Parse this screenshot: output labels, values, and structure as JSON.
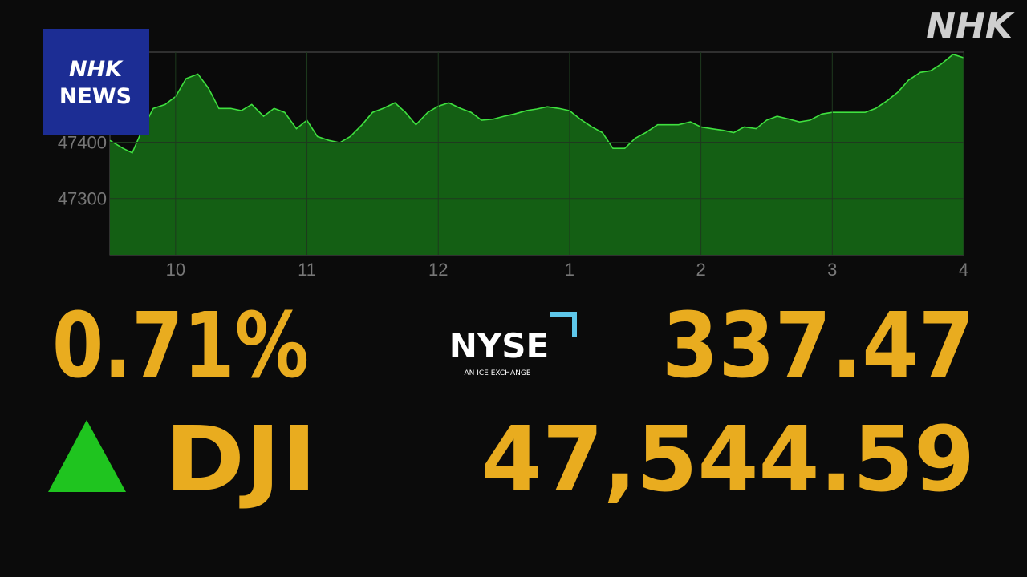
{
  "chart_data": {
    "type": "area",
    "color": "#3fe03f",
    "fill": "#145f14",
    "x": [
      9.5,
      9.6,
      9.67,
      9.75,
      9.83,
      9.92,
      10.0,
      10.08,
      10.17,
      10.25,
      10.33,
      10.42,
      10.5,
      10.58,
      10.67,
      10.75,
      10.83,
      10.92,
      11.0,
      11.08,
      11.17,
      11.25,
      11.33,
      11.42,
      11.5,
      11.58,
      11.67,
      11.75,
      11.83,
      11.92,
      12.0,
      12.08,
      12.17,
      12.25,
      12.33,
      12.42,
      12.5,
      12.58,
      12.67,
      12.75,
      12.83,
      12.92,
      13.0,
      13.08,
      13.17,
      13.25,
      13.33,
      13.42,
      13.5,
      13.58,
      13.67,
      13.75,
      13.83,
      13.92,
      14.0,
      14.08,
      14.17,
      14.25,
      14.33,
      14.42,
      14.5,
      14.58,
      14.67,
      14.75,
      14.83,
      14.92,
      15.0,
      15.08,
      15.17,
      15.25,
      15.33,
      15.42,
      15.5,
      15.58,
      15.67,
      15.75,
      15.83,
      15.92,
      16.0
    ],
    "values": [
      47403,
      47389,
      47381,
      47424,
      47460,
      47467,
      47481,
      47513,
      47521,
      47496,
      47460,
      47460,
      47456,
      47467,
      47446,
      47460,
      47453,
      47424,
      47439,
      47410,
      47403,
      47399,
      47410,
      47431,
      47453,
      47460,
      47470,
      47453,
      47431,
      47453,
      47464,
      47470,
      47460,
      47453,
      47439,
      47441,
      47446,
      47450,
      47456,
      47459,
      47463,
      47460,
      47456,
      47441,
      47427,
      47417,
      47389,
      47389,
      47407,
      47417,
      47431,
      47431,
      47431,
      47436,
      47427,
      47424,
      47421,
      47417,
      47427,
      47424,
      47439,
      47446,
      47441,
      47436,
      47439,
      47450,
      47453,
      47453,
      47453,
      47453,
      47460,
      47474,
      47489,
      47510,
      47524,
      47527,
      47539,
      47556,
      47550
    ],
    "xlim": [
      9.5,
      16
    ],
    "ylim": [
      47200,
      47560
    ],
    "xticks": [
      10,
      11,
      12,
      {
        "value": 13,
        "label": "1"
      },
      {
        "value": 14,
        "label": "2"
      },
      {
        "value": 15,
        "label": "3"
      },
      {
        "value": 16,
        "label": "4"
      }
    ],
    "yticks": [
      47300,
      47400
    ],
    "grid": true
  },
  "ticker": {
    "change_percent": "0.71%",
    "change_points": "337.47",
    "symbol": "DJI",
    "price": "47,544.59"
  },
  "logos": {
    "nyse": "NYSE",
    "nyse_sub": "AN ICE EXCHANGE",
    "news_top": "NHK",
    "news_bottom": "NEWS",
    "corner": "NHK"
  }
}
